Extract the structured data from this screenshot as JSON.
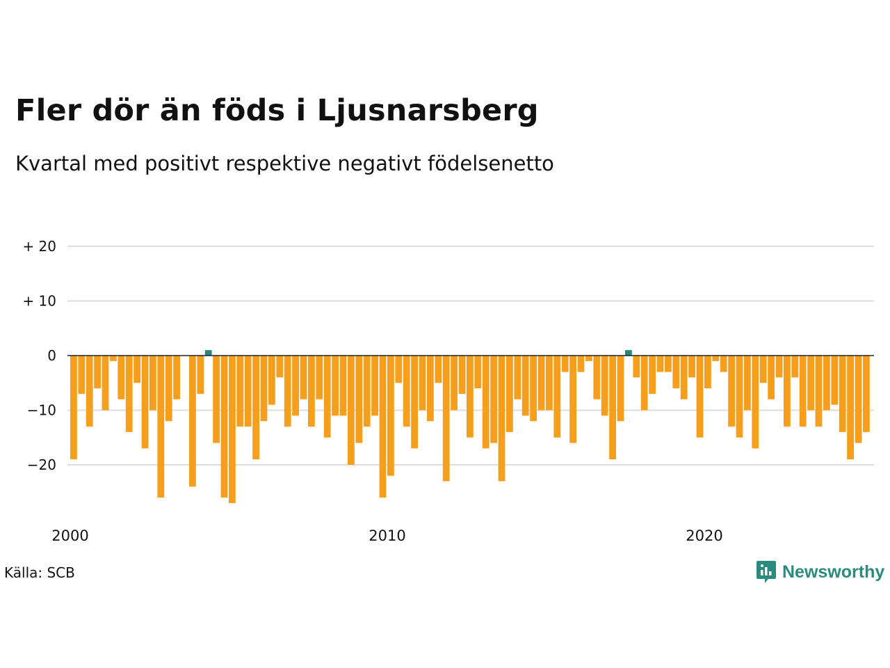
{
  "title": "Fler dör än föds i Ljusnarsberg",
  "subtitle": "Kvartal med positivt respektive negativt födelsenetto",
  "source": "Källa: SCB",
  "logo": {
    "text": "Newsworthy",
    "icon": "newsworthy-logo-icon"
  },
  "colors": {
    "negative": "#f59f1c",
    "positive": "#24877a",
    "grid": "#dddddd",
    "zero": "#222222"
  },
  "chart_data": {
    "type": "bar",
    "title": "Fler dör än föds i Ljusnarsberg",
    "subtitle": "Kvartal med positivt respektive negativt födelsenetto",
    "xlabel": "",
    "ylabel": "",
    "x_start": 2000,
    "periods_per_year": 4,
    "ylim": [
      -28,
      22
    ],
    "yticks": [
      20,
      10,
      0,
      -10,
      -20
    ],
    "ytick_labels": [
      "+ 20",
      "+ 10",
      "0",
      "−10",
      "−20"
    ],
    "xticks": [
      2000,
      2010,
      2020
    ],
    "xtick_labels": [
      "2000",
      "2010",
      "2020"
    ],
    "grid": true,
    "values": [
      -19,
      -7,
      -13,
      -6,
      -10,
      -1,
      -8,
      -14,
      -5,
      -17,
      -10,
      -26,
      -12,
      -8,
      0,
      -24,
      -7,
      1,
      -16,
      -26,
      -27,
      -13,
      -13,
      -19,
      -12,
      -9,
      -4,
      -13,
      -11,
      -8,
      -13,
      -8,
      -15,
      -11,
      -11,
      -20,
      -16,
      -13,
      -11,
      -26,
      -22,
      -5,
      -13,
      -17,
      -10,
      -12,
      -5,
      -23,
      -10,
      -7,
      -15,
      -6,
      -17,
      -16,
      -23,
      -14,
      -8,
      -11,
      -12,
      -10,
      -10,
      -15,
      -3,
      -16,
      -3,
      -1,
      -8,
      -11,
      -19,
      -12,
      1,
      -4,
      -10,
      -7,
      -3,
      -3,
      -6,
      -8,
      -4,
      -15,
      -6,
      -1,
      -3,
      -13,
      -15,
      -10,
      -17,
      -5,
      -8,
      -4,
      -13,
      -4,
      -13,
      -10,
      -13,
      -10,
      -9,
      -14,
      -19,
      -16,
      -14
    ]
  }
}
